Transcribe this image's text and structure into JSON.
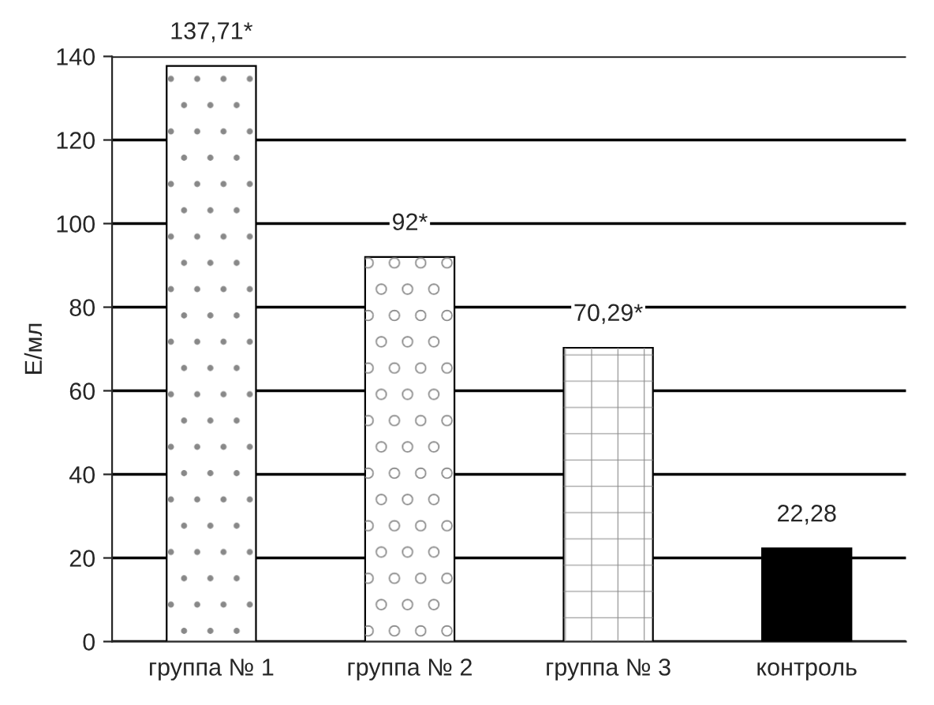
{
  "chart_data": {
    "type": "bar",
    "ylabel": "Е/мл",
    "categories": [
      "группа № 1",
      "группа № 2",
      "группа № 3",
      "контроль"
    ],
    "values": [
      137.71,
      92,
      70.29,
      22.28
    ],
    "colors": [
      "#ffffff",
      "#ffffff",
      "#ffffff",
      "#000000"
    ],
    "value_labels": [
      "137,71*",
      "92*",
      "70,29*",
      "22,28"
    ],
    "ylim": [
      0,
      140
    ],
    "yticks": [
      0,
      20,
      40,
      60,
      80,
      100,
      120,
      140
    ],
    "grid": "y",
    "legend": false
  }
}
